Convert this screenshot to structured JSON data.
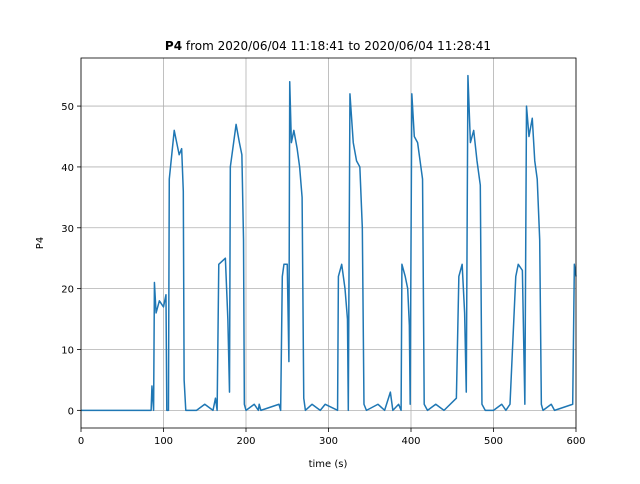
{
  "chart_data": {
    "type": "line",
    "title_bold": "P4",
    "title_rest": "from 2020/06/04 11:18:41 to 2020/06/04 11:28:41",
    "x_label": "time (s)",
    "y_label": "P4",
    "color": "#1f77b4",
    "grid": true,
    "xlim": [
      0,
      600
    ],
    "xticks": [
      0,
      100,
      200,
      300,
      400,
      500,
      600
    ],
    "ylim": [
      -2.9,
      57.9
    ],
    "yticks": [
      0,
      10,
      20,
      30,
      40,
      50
    ],
    "x": [
      0,
      85,
      86,
      88,
      89,
      91,
      95,
      100,
      103,
      104,
      106,
      107,
      110,
      113,
      116,
      119,
      122,
      124,
      125,
      127,
      140,
      150,
      160,
      163,
      165,
      167,
      175,
      178,
      180,
      181,
      185,
      188,
      192,
      195,
      197,
      198,
      200,
      210,
      215,
      216,
      218,
      240,
      242,
      244,
      246,
      250,
      252,
      253,
      255,
      258,
      262,
      265,
      268,
      270,
      272,
      280,
      290,
      296,
      311,
      312,
      316,
      320,
      323,
      324,
      326,
      330,
      334,
      338,
      341,
      343,
      346,
      360,
      368,
      375,
      378,
      385,
      388,
      389,
      393,
      396,
      398,
      399,
      401,
      404,
      408,
      412,
      414,
      416,
      420,
      430,
      440,
      455,
      458,
      462,
      465,
      467,
      469,
      472,
      476,
      480,
      484,
      486,
      490,
      500,
      510,
      515,
      520,
      527,
      530,
      535,
      538,
      540,
      543,
      547,
      550,
      553,
      556,
      558,
      560,
      570,
      574,
      596,
      598,
      600
    ],
    "values": [
      0,
      0,
      4,
      0,
      21,
      16,
      18,
      17,
      19,
      0,
      0,
      38,
      42,
      46,
      44,
      42,
      43,
      36,
      5,
      0,
      0,
      1,
      0,
      2,
      0,
      24,
      25,
      15,
      3,
      40,
      44,
      47,
      44,
      42,
      28,
      1,
      0,
      1,
      0,
      1,
      0,
      1,
      0,
      22,
      24,
      24,
      8,
      54,
      44,
      46,
      43,
      40,
      35,
      2,
      0,
      1,
      0,
      1,
      0,
      22,
      24,
      20,
      15,
      0,
      52,
      44,
      41,
      40,
      30,
      1,
      0,
      1,
      0,
      3,
      0,
      1,
      0,
      24,
      22,
      20,
      14,
      1,
      52,
      45,
      44,
      40,
      38,
      1,
      0,
      1,
      0,
      2,
      22,
      24,
      16,
      3,
      55,
      44,
      46,
      41,
      37,
      1,
      0,
      0,
      1,
      0,
      1,
      22,
      24,
      23,
      1,
      50,
      45,
      48,
      41,
      38,
      28,
      1,
      0,
      1,
      0,
      1,
      24,
      22
    ]
  }
}
